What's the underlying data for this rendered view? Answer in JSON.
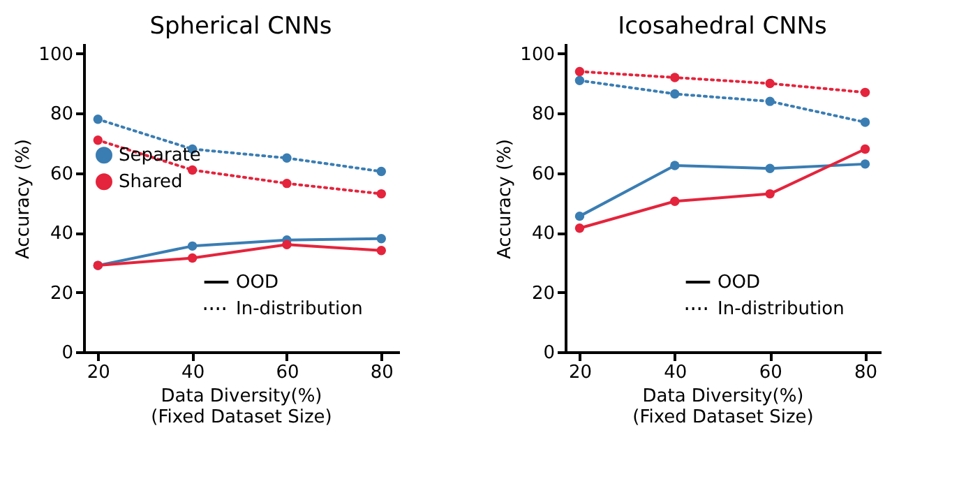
{
  "chart_data": [
    {
      "type": "line",
      "title": "Spherical CNNs",
      "xlabel": "Data Diversity(%)\n(Fixed Dataset Size)",
      "ylabel": "Accuracy (%)",
      "x": [
        20,
        40,
        60,
        80
      ],
      "xlim": [
        17,
        83.5
      ],
      "xticks": [
        20,
        40,
        60,
        80
      ],
      "ylim": [
        0,
        103
      ],
      "yticks": [
        0,
        20,
        40,
        60,
        80,
        100
      ],
      "grid": false,
      "marker": "circle",
      "legend": "left",
      "annotations": [
        "OOD",
        "In-distribution"
      ],
      "series": [
        {
          "name": "Separate",
          "color": "#3a7db3",
          "line_style": "solid",
          "values": [
            29,
            35.5,
            37.5,
            38
          ]
        },
        {
          "name": "Shared",
          "color": "#e4243c",
          "line_style": "solid",
          "values": [
            29,
            31.5,
            36,
            34
          ]
        },
        {
          "color": "#3a7db3",
          "line_style": "dotted",
          "values": [
            78,
            68,
            65,
            60.5
          ]
        },
        {
          "color": "#e4243c",
          "line_style": "dotted",
          "values": [
            71,
            61,
            56.5,
            53
          ]
        }
      ]
    },
    {
      "type": "line",
      "title": "Icosahedral CNNs",
      "xlabel": "Data Diversity(%)\n(Fixed Dataset Size)",
      "ylabel": "Accuracy (%)",
      "x": [
        20,
        40,
        60,
        80
      ],
      "xlim": [
        17,
        83
      ],
      "xticks": [
        20,
        40,
        60,
        80
      ],
      "ylim": [
        0,
        103
      ],
      "yticks": [
        0,
        20,
        40,
        60,
        80,
        100
      ],
      "grid": false,
      "marker": "circle",
      "legend": "bottom right",
      "annotations": [
        "OOD",
        "In-distribution"
      ],
      "series": [
        {
          "color": "#3a7db3",
          "line_style": "solid",
          "values": [
            45.5,
            62.5,
            61.5,
            63
          ]
        },
        {
          "color": "#e4243c",
          "line_style": "solid",
          "values": [
            41.5,
            50.5,
            53,
            68
          ]
        },
        {
          "color": "#3a7db3",
          "line_style": "dotted",
          "values": [
            91,
            86.5,
            84,
            77
          ]
        },
        {
          "color": "#e4243c",
          "line_style": "dotted",
          "values": [
            94,
            92,
            90,
            87
          ]
        }
      ]
    }
  ]
}
